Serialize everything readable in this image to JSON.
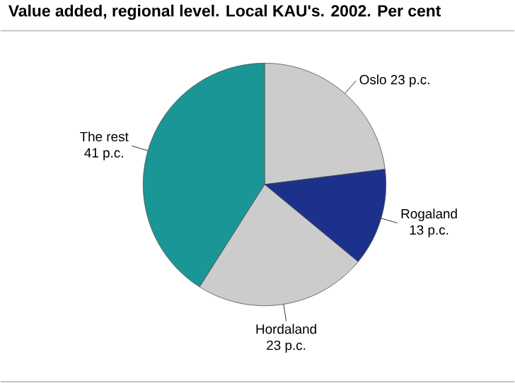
{
  "chart_data": {
    "type": "pie",
    "title": "Value added, regional level. Local KAU's. 2002. Per cent",
    "categories": [
      "Oslo",
      "Rogaland",
      "Hordaland",
      "The rest"
    ],
    "values": [
      23,
      13,
      23,
      41
    ],
    "value_labels": [
      "23 p.c.",
      "13 p.c.",
      "23 p.c.",
      "41 p.c."
    ],
    "colors": [
      "#cccccc",
      "#1b318c",
      "#cccccc",
      "#1a9697"
    ]
  }
}
